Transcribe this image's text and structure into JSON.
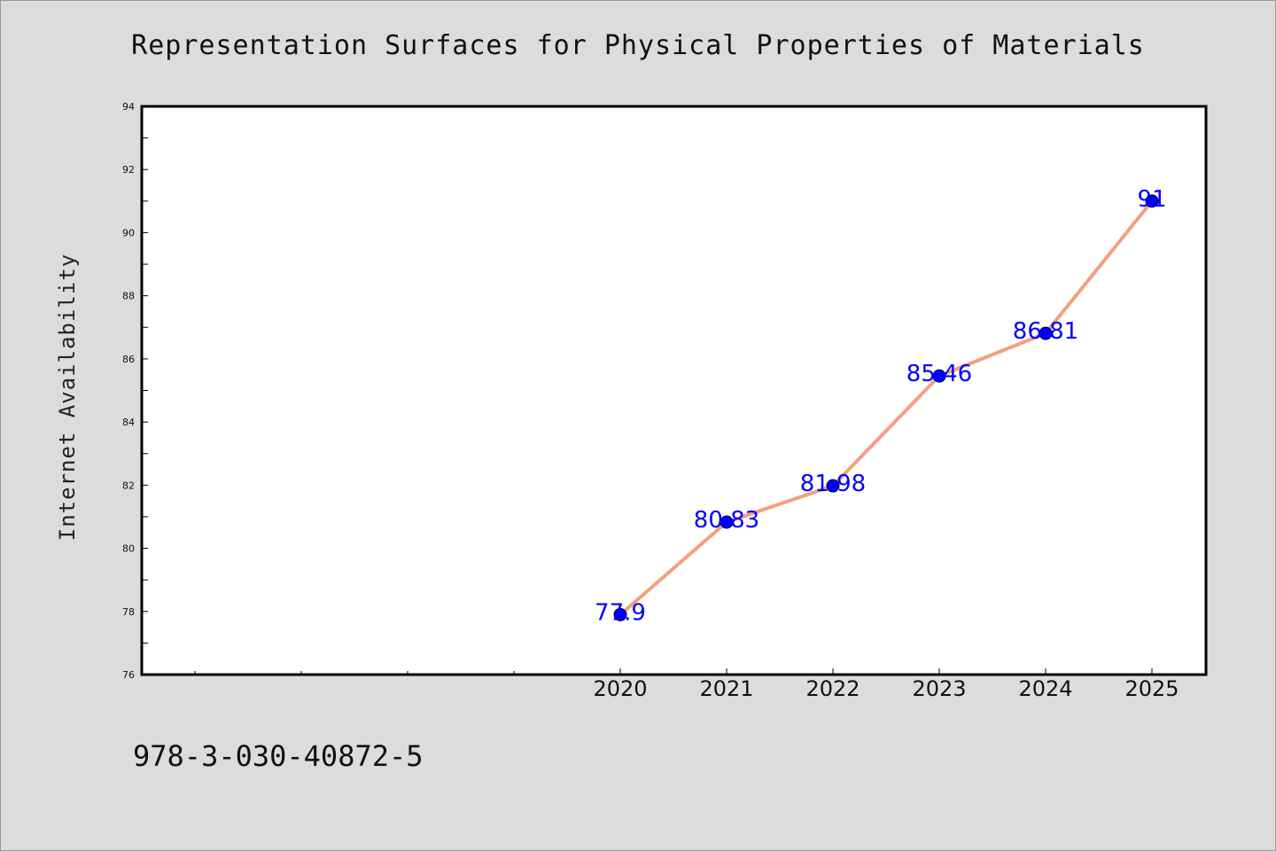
{
  "chart_data": {
    "type": "line",
    "title": "Representation Surfaces for Physical Properties of Materials",
    "xlabel": "",
    "ylabel": "Internet Availability",
    "categories": [
      "2020",
      "2021",
      "2022",
      "2023",
      "2024",
      "2025"
    ],
    "series": [
      {
        "values": [
          77.9,
          80.83,
          81.98,
          85.46,
          86.81,
          91
        ]
      }
    ],
    "data_labels": [
      "77.9",
      "80.83",
      "81.98",
      "85.46",
      "86.81",
      "91"
    ],
    "ylim": [
      76,
      94
    ],
    "yticks": [
      "76",
      "78",
      "80",
      "82",
      "84",
      "86",
      "88",
      "90",
      "92",
      "94"
    ],
    "grid": false,
    "line_color": "#f4a07e",
    "marker_color": "#0000ff"
  },
  "footer": {
    "isbn": "978-3-030-40872-5"
  }
}
